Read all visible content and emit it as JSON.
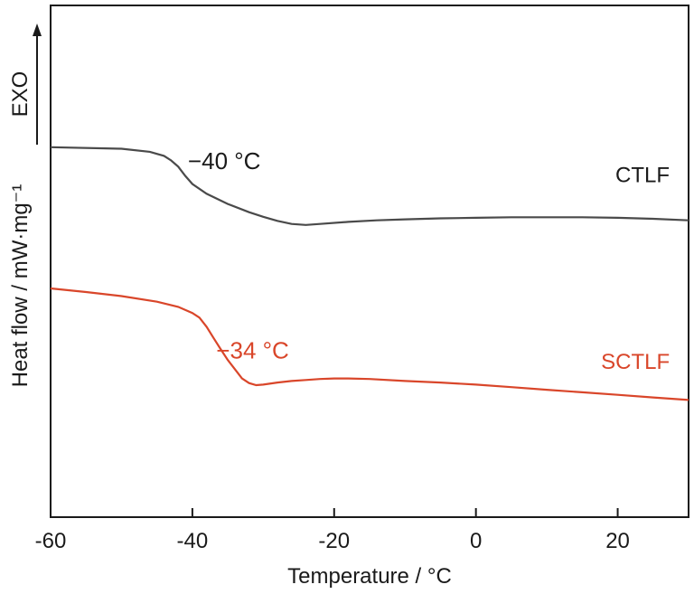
{
  "chart_data": {
    "type": "line",
    "xlabel": "Temperature / °C",
    "ylabel": "Heat flow / mW·mg⁻¹",
    "exo_label": "EXO",
    "xlim": [
      -60,
      30
    ],
    "ylim": [
      0,
      100
    ],
    "y_ticks_shown": false,
    "x_ticks": [
      -60,
      -40,
      -20,
      0,
      20
    ],
    "x_tick_labels": [
      "-60",
      "-40",
      "-20",
      "0",
      "20"
    ],
    "grid": false,
    "colors": {
      "CTLF": "#4a4a4a",
      "SCTLF": "#d9462a"
    },
    "series": [
      {
        "name": "CTLF",
        "x": [
          -60,
          -50,
          -46,
          -44,
          -43,
          -42,
          -41,
          -40,
          -38,
          -35,
          -32,
          -30,
          -28,
          -26,
          -24,
          -22,
          -18,
          -14,
          -10,
          -5,
          0,
          5,
          10,
          15,
          20,
          25,
          30
        ],
        "y": [
          72.3,
          72.0,
          71.4,
          70.6,
          69.7,
          68.5,
          66.7,
          65.1,
          63.2,
          61.2,
          59.6,
          58.7,
          57.9,
          57.3,
          57.1,
          57.3,
          57.7,
          58.0,
          58.2,
          58.4,
          58.5,
          58.6,
          58.6,
          58.6,
          58.5,
          58.3,
          58.0
        ]
      },
      {
        "name": "SCTLF",
        "x": [
          -60,
          -55,
          -50,
          -45,
          -42,
          -40,
          -39,
          -38,
          -37,
          -36,
          -35,
          -34,
          -33,
          -32,
          -31,
          -30,
          -28,
          -26,
          -24,
          -22,
          -20,
          -18,
          -15,
          -10,
          -5,
          0,
          5,
          10,
          15,
          20,
          25,
          30
        ],
        "y": [
          44.7,
          44.0,
          43.2,
          42.1,
          41.1,
          39.9,
          39.0,
          37.2,
          35.0,
          32.8,
          30.7,
          28.9,
          27.1,
          26.2,
          25.8,
          25.9,
          26.3,
          26.6,
          26.8,
          27.0,
          27.1,
          27.1,
          27.0,
          26.6,
          26.3,
          25.9,
          25.4,
          24.9,
          24.4,
          23.9,
          23.4,
          22.9
        ]
      }
    ],
    "series_labels": [
      {
        "series": "CTLF",
        "text": "CTLF",
        "x": 23.5,
        "y": 65.5
      },
      {
        "series": "SCTLF",
        "text": "SCTLF",
        "x": 22.5,
        "y": 29.0
      }
    ],
    "annotations": [
      {
        "series": "CTLF",
        "text": "−40 °C",
        "x": -35.5,
        "y": 68.0
      },
      {
        "series": "SCTLF",
        "text": "−34 °C",
        "x": -31.5,
        "y": 31.0
      }
    ]
  }
}
